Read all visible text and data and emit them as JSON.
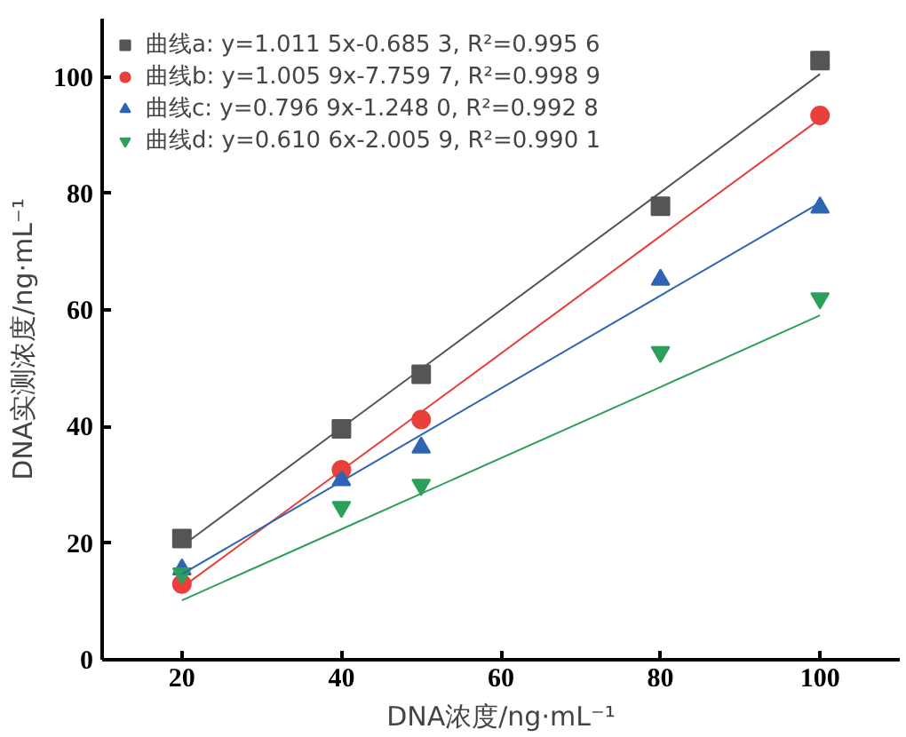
{
  "chart_data": {
    "type": "scatter",
    "xlabel": "DNA浓度/ng·mL⁻¹",
    "ylabel": "DNA实测浓度/ng·mL⁻¹",
    "x": [
      20,
      40,
      50,
      80,
      100
    ],
    "xlim": [
      10,
      110
    ],
    "ylim": [
      0,
      110
    ],
    "xticks": [
      20,
      40,
      60,
      80,
      100
    ],
    "yticks": [
      0,
      20,
      40,
      60,
      80,
      100
    ],
    "grid": false,
    "legend": "top left",
    "series": [
      {
        "name": "曲线a: y=1.011 5x-0.685 3, R²=0.995 6",
        "color": "#555555",
        "marker": "square",
        "values": [
          20.8,
          39.6,
          49,
          77.8,
          102.8
        ]
      },
      {
        "name": "曲线b: y=1.005 9x-7.759 7, R²=0.998 9",
        "color": "#e8403a",
        "marker": "circle",
        "values": [
          13,
          32.6,
          41.2,
          null,
          93.4
        ]
      },
      {
        "name": "曲线c: y=0.796 9x-1.248 0, R²=0.992 8",
        "color": "#2e64b4",
        "marker": "triangle",
        "values": [
          15.5,
          30.8,
          36.4,
          65.2,
          77.6
        ]
      },
      {
        "name": "曲线d: y=0.610 6x-2.005 9, R²=0.990 1",
        "color": "#2ca05a",
        "values": [
          14.8,
          26.2,
          30,
          52.8,
          62
        ]
      },
      {
        "type": "line",
        "color": "#555555",
        "values": [
          19.5,
          39.8,
          49.9,
          80.2,
          100.5
        ]
      },
      {
        "type": "line",
        "color": "#e8403a",
        "values": [
          12.4,
          32.5,
          42.5,
          72.7,
          92.8
        ]
      },
      {
        "type": "line",
        "color": "#2e64b4",
        "values": [
          14.7,
          30.6,
          38.6,
          62.5,
          78.4
        ]
      },
      {
        "type": "line",
        "color": "#2ca05a",
        "values": [
          10.2,
          22.4,
          28.5,
          46.8,
          59.1
        ]
      }
    ]
  }
}
